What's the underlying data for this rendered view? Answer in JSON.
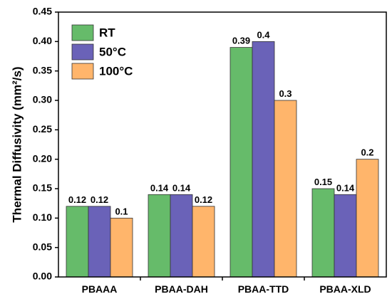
{
  "chart_data": {
    "type": "bar",
    "title": "",
    "xlabel": "",
    "ylabel": "Thermal Diffusivity (mm²/s)",
    "ylim": [
      0,
      0.45
    ],
    "yticks": [
      "0.00",
      "0.05",
      "0.10",
      "0.15",
      "0.20",
      "0.25",
      "0.30",
      "0.35",
      "0.40",
      "0.45"
    ],
    "categories": [
      "PBAAA",
      "PBAA-DAH",
      "PBAA-TTD",
      "PBAA-XLD"
    ],
    "series": [
      {
        "name": "RT",
        "color": "#66bb6a",
        "values": [
          0.12,
          0.14,
          0.39,
          0.15
        ],
        "labels": [
          "0.12",
          "0.14",
          "0.39",
          "0.15"
        ]
      },
      {
        "name": "50°C",
        "color": "#6a62b8",
        "values": [
          0.12,
          0.14,
          0.4,
          0.14
        ],
        "labels": [
          "0.12",
          "0.14",
          "0.4",
          "0.14"
        ]
      },
      {
        "name": "100°C",
        "color": "#ffb56b",
        "values": [
          0.1,
          0.12,
          0.3,
          0.2
        ],
        "labels": [
          "0.1",
          "0.12",
          "0.3",
          "0.2"
        ]
      }
    ],
    "legend_position": "top-left",
    "grid": false
  }
}
